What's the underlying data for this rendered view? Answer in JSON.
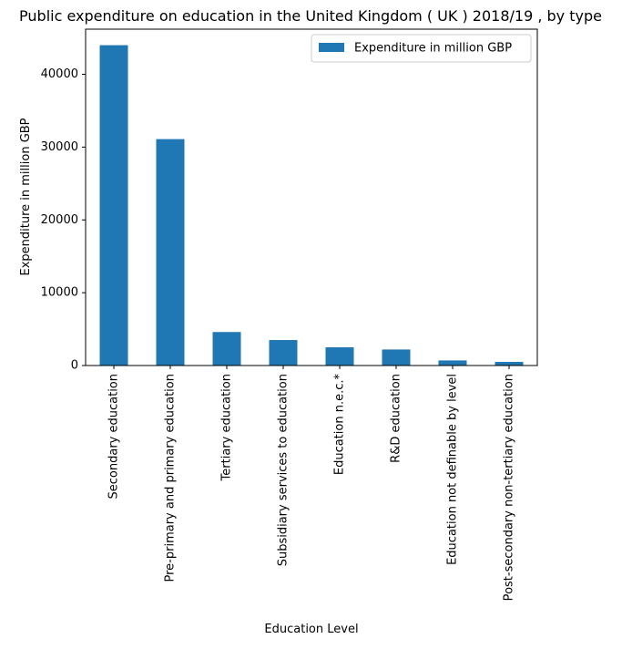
{
  "chart_data": {
    "type": "bar",
    "title": "Public expenditure on education in the United Kingdom ( UK ) 2018/19 , by type",
    "xlabel": "Education Level",
    "ylabel": "Expenditure in million GBP",
    "categories": [
      "Secondary education",
      "Pre-primary and primary education",
      "Tertiary education",
      "Subsidiary services to education",
      "Education n.e.c.*",
      "R&D education",
      "Education not definable by level",
      "Post-secondary non-tertiary education"
    ],
    "series": [
      {
        "name": "Expenditure in million GBP",
        "values": [
          44000,
          31100,
          4600,
          3500,
          2500,
          2200,
          700,
          500
        ],
        "color": "#1f77b4"
      }
    ],
    "ylim": [
      0,
      46200
    ],
    "yticks": [
      0,
      10000,
      20000,
      30000,
      40000
    ],
    "grid": false,
    "legend_position": "top-right"
  }
}
